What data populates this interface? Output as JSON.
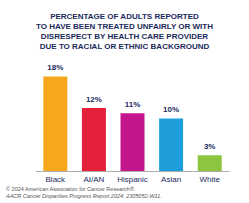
{
  "chart_data": {
    "type": "bar",
    "title": "PERCENTAGE OF ADULTS REPORTED\nTO HAVE BEEN TREATED UNFAIRLY OR WITH\nDISRESPECT BY HEALTH CARE PROVIDER\nDUE TO RACIAL OR ETHNIC BACKGROUND",
    "categories": [
      "Black",
      "AI/AN",
      "Hispanic",
      "Asian",
      "White"
    ],
    "values": [
      18,
      12,
      11,
      10,
      3
    ],
    "value_labels": [
      "18%",
      "12%",
      "11%",
      "10%",
      "3%"
    ],
    "colors": [
      "#f6a81c",
      "#e5203a",
      "#c4168c",
      "#1e9fdc",
      "#8cc63f"
    ],
    "ylim": [
      0,
      20
    ],
    "grid": false,
    "data_labels": true,
    "tick_labels": "x",
    "annotations": [
      "© 2024 American Association for Cancer Research®.",
      "AACR Cancer Disparities Progress Report 2024: 2305052-W11."
    ]
  }
}
